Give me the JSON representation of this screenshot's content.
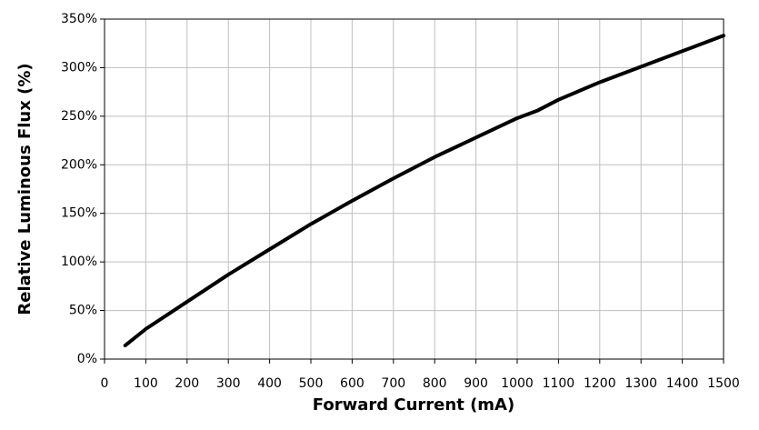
{
  "chart_data": {
    "type": "line",
    "x_label": "Forward Current (mA)",
    "y_label": "Relative Luminous Flux (%)",
    "x": [
      50,
      100,
      200,
      300,
      400,
      500,
      600,
      700,
      800,
      900,
      1000,
      1050,
      1100,
      1200,
      1300,
      1400,
      1500
    ],
    "series": [
      {
        "name": "Relative Luminous Flux",
        "color": "#000000",
        "values": [
          14,
          31,
          59,
          87,
          113,
          139,
          163,
          186,
          208,
          228,
          248,
          256,
          267,
          285,
          301,
          317,
          333
        ]
      }
    ],
    "xlim": [
      0,
      1500
    ],
    "xticks": [
      0,
      100,
      200,
      300,
      400,
      500,
      600,
      700,
      800,
      900,
      1000,
      1100,
      1200,
      1300,
      1400,
      1500
    ],
    "ylim": [
      0,
      350
    ],
    "yticks": [
      {
        "value": 0,
        "label": "0%"
      },
      {
        "value": 50,
        "label": "50%"
      },
      {
        "value": 100,
        "label": "100%"
      },
      {
        "value": 150,
        "label": "150%"
      },
      {
        "value": 200,
        "label": "200%"
      },
      {
        "value": 250,
        "label": "250%"
      },
      {
        "value": 300,
        "label": "300%"
      },
      {
        "value": 350,
        "label": "350%"
      }
    ],
    "grid": true
  }
}
